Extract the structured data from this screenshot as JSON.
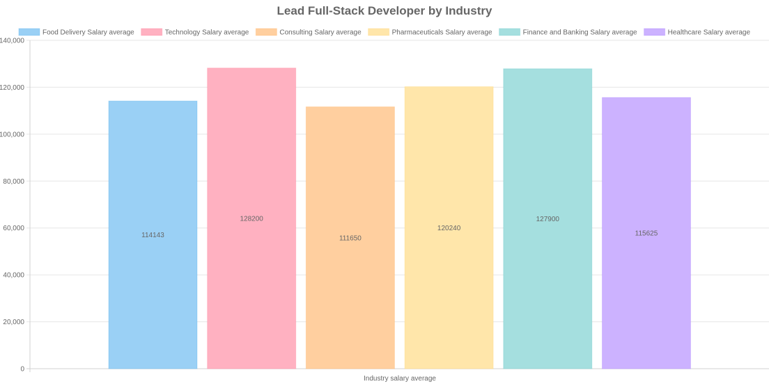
{
  "chart_data": {
    "type": "bar",
    "title": "Lead Full-Stack Developer by Industry",
    "xlabel": "Industry salary average",
    "ylabel": "",
    "ylim": [
      0,
      140000
    ],
    "yticks": [
      0,
      20000,
      40000,
      60000,
      80000,
      100000,
      120000,
      140000
    ],
    "ytick_labels": [
      "0",
      "20,000",
      "40,000",
      "60,000",
      "80,000",
      "100,000",
      "120,000",
      "140,000"
    ],
    "grid": true,
    "legend_position": "top",
    "series": [
      {
        "name": "Food Delivery Salary average",
        "value": 114143,
        "label": "114143",
        "color": "#9ad0f5",
        "border": "#36a2eb"
      },
      {
        "name": "Technology Salary average",
        "value": 128200,
        "label": "128200",
        "color": "#ffb1c1",
        "border": "#ff6384"
      },
      {
        "name": "Consulting Salary average",
        "value": 111650,
        "label": "111650",
        "color": "#ffcf9f",
        "border": "#ff9f40"
      },
      {
        "name": "Pharmaceuticals Salary average",
        "value": 120240,
        "label": "120240",
        "color": "#ffe6aa",
        "border": "#ffcd56"
      },
      {
        "name": "Finance and Banking Salary average",
        "value": 127900,
        "label": "127900",
        "color": "#a5dfdf",
        "border": "#4bc0c0"
      },
      {
        "name": "Healthcare Salary average",
        "value": 115625,
        "label": "115625",
        "color": "#ccb2ff",
        "border": "#9966ff"
      }
    ]
  }
}
